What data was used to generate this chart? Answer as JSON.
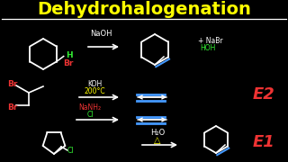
{
  "title": "Dehydrohalogenation",
  "title_color": "#FFFF00",
  "bg_color": "#000000",
  "line_color": "#FFFFFF",
  "red_color": "#EE3333",
  "green_color": "#33EE33",
  "blue_color": "#4499FF",
  "yellow_color": "#FFFF00",
  "white": "#FFFFFF",
  "reaction1_label": "NaOH",
  "reaction2a_label": "KOH",
  "reaction2b_label": "200°C",
  "reaction3a_label": "NaNH₂",
  "reaction3b_label": "Cl",
  "reaction4a_label": "H₂O",
  "reaction4b_label": "△",
  "product1a_label": "+ NaBr",
  "product1b_label": "HOH",
  "E2_label": "E2",
  "E1_label": "E1",
  "H_label": "H",
  "Br_label": "Br"
}
